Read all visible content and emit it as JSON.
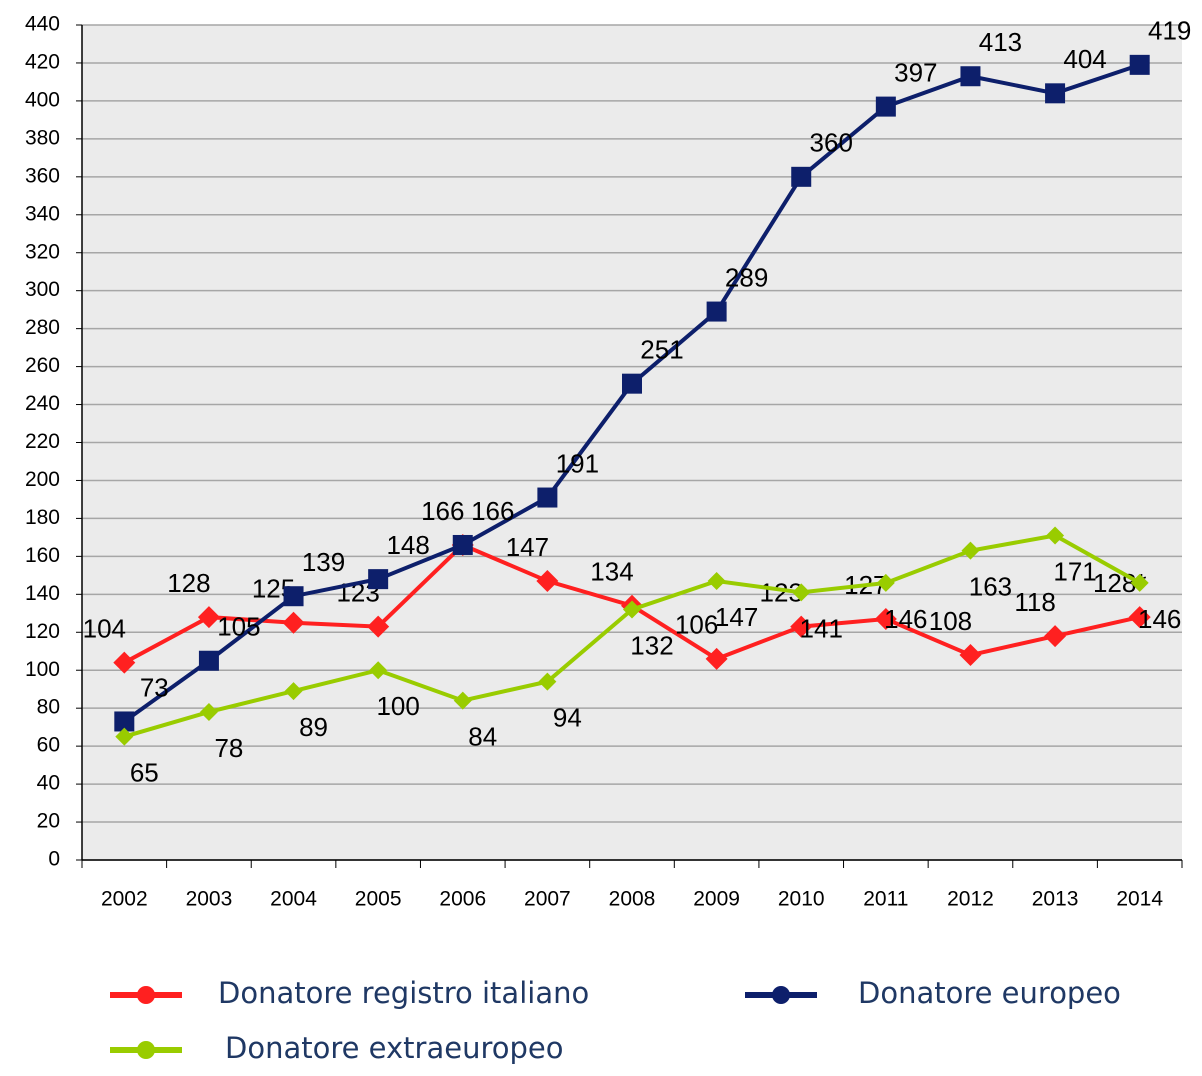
{
  "chart_data": {
    "type": "line",
    "categories": [
      "2002",
      "2003",
      "2004",
      "2005",
      "2006",
      "2007",
      "2008",
      "2009",
      "2010",
      "2011",
      "2012",
      "2013",
      "2014"
    ],
    "series": [
      {
        "name": "Donatore registro italiano",
        "color": "#ff2020",
        "marker": "diamond",
        "values": [
          104,
          128,
          125,
          123,
          166,
          147,
          134,
          106,
          123,
          127,
          108,
          118,
          128
        ],
        "value_labels": [
          "104",
          "128",
          "125",
          "123",
          "166",
          "147",
          "134",
          "106",
          "123",
          "127",
          "108",
          "118",
          "128*"
        ]
      },
      {
        "name": "Donatore europeo",
        "color": "#0d1f6b",
        "marker": "square",
        "values": [
          73,
          105,
          139,
          148,
          166,
          191,
          251,
          289,
          360,
          397,
          413,
          404,
          419
        ]
      },
      {
        "name": "Donatore extraeuropeo",
        "color": "#99cc00",
        "marker": "diamond",
        "values": [
          65,
          78,
          89,
          100,
          84,
          94,
          132,
          147,
          141,
          146,
          163,
          171,
          146
        ]
      }
    ],
    "ylim": [
      0,
      440
    ],
    "yticks": [
      0,
      20,
      40,
      60,
      80,
      100,
      120,
      140,
      160,
      180,
      200,
      220,
      240,
      260,
      280,
      300,
      320,
      340,
      360,
      380,
      400,
      420,
      440
    ],
    "grid": true
  }
}
